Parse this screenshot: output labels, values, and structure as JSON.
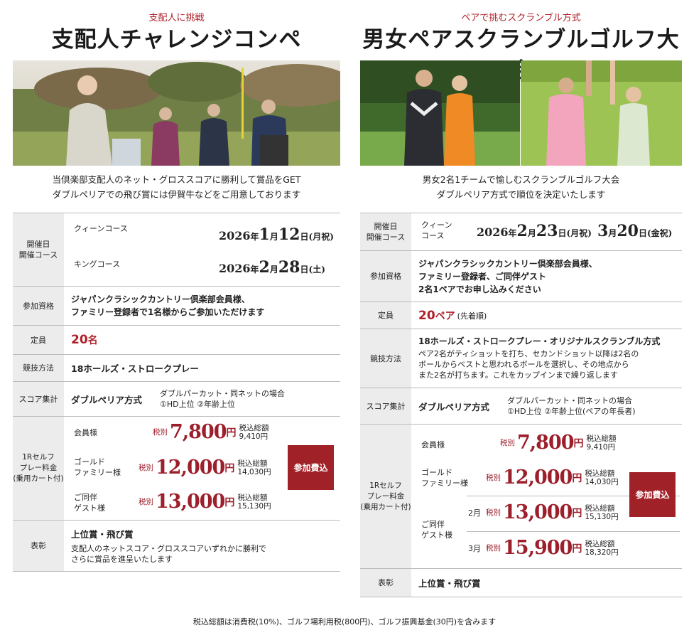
{
  "left": {
    "subtitle": "支配人に挑戦",
    "title": "支配人チャレンジコンペ",
    "desc1": "当倶楽部支配人のネット・グロススコアに勝利して賞品をGET",
    "desc2": "ダブルペリアでの飛び賞には伊賀牛などをご用意しております",
    "date_head": "開催日\n開催コース",
    "course1": "クィーンコース",
    "date1": {
      "year": "2026",
      "nen": "年",
      "month": "1",
      "tsuki": "月",
      "day": "12",
      "hi": "日",
      "dow": "(月祝)"
    },
    "course2": "キングコース",
    "date2": {
      "year": "2026",
      "nen": "年",
      "month": "2",
      "tsuki": "月",
      "day": "28",
      "hi": "日",
      "dow": "(土)"
    },
    "qual_head": "参加資格",
    "qual1": "ジャパンクラシックカントリー倶楽部会員様、",
    "qual2": "ファミリー登録者で1名様からご参加いただけます",
    "cap_head": "定員",
    "cap_num": "20",
    "cap_unit": "名",
    "method_head": "競技方法",
    "method": "18ホールズ・ストロークプレー",
    "score_head": "スコア集計",
    "score": "ダブルペリア方式",
    "score_note1": "ダブルパーカット・同ネットの場合",
    "score_note2": "①HD上位 ②年齢上位",
    "fee_head": "1Rセルフ\nプレー料金\n(乗用カート付)",
    "fees": [
      {
        "label": "会員様",
        "zei": "税別",
        "price": "7,800",
        "yen": "円",
        "tax_label": "税込総額",
        "tax": "9,410円"
      },
      {
        "label": "ゴールド\nファミリー様",
        "zei": "税別",
        "price": "12,000",
        "yen": "円",
        "tax_label": "税込総額",
        "tax": "14,030円"
      },
      {
        "label": "ご同伴\nゲスト様",
        "zei": "税別",
        "price": "13,000",
        "yen": "円",
        "tax_label": "税込総額",
        "tax": "15,130円"
      }
    ],
    "fee_button": "参加費込",
    "award_head": "表彰",
    "award": "上位賞・飛び賞",
    "award_note1": "支配人のネットスコア・グロススコアいずれかに勝利で",
    "award_note2": "さらに賞品を進呈いたします"
  },
  "right": {
    "subtitle": "ペアで挑むスクランブル方式",
    "title": "男女ペアスクランブルゴルフ大会",
    "desc1": "男女2名1チームで愉しむスクランブルゴルフ大会",
    "desc2": "ダブルペリア方式で順位を決定いたします",
    "date_head": "開催日\n開催コース",
    "course": "クィーン\nコース",
    "date1": {
      "year": "2026",
      "nen": "年",
      "month": "2",
      "tsuki": "月",
      "day": "23",
      "hi": "日",
      "dow": "(月祝)"
    },
    "date2": {
      "month": "3",
      "tsuki": "月",
      "day": "20",
      "hi": "日",
      "dow": "(金祝)"
    },
    "qual_head": "参加資格",
    "qual1": "ジャパンクラシックカントリー倶楽部会員様、",
    "qual2": "ファミリー登録者、ご同伴ゲスト",
    "qual3": "2名1ペアでお申し込みください",
    "cap_head": "定員",
    "cap_num": "20",
    "cap_unit": "ペア",
    "cap_note": "(先着順)",
    "method_head": "競技方法",
    "method": "18ホールズ・ストロークプレー・オリジナルスクランブル方式",
    "method_note1": "ペア2名がティショットを打ち、セカンドショット以降は2名の",
    "method_note2": "ボールからベストと思われるボールを選択し、その地点から",
    "method_note3": "また2名が打ちます。これをカップインまで繰り返します",
    "score_head": "スコア集計",
    "score": "ダブルペリア方式",
    "score_note1": "ダブルパーカット・同ネットの場合",
    "score_note2": "①HD上位 ②年齢上位(ペアの年長者)",
    "fee_head": "1Rセルフ\nプレー料金\n(乗用カート付)",
    "fees": [
      {
        "label": "会員様",
        "sub": "",
        "zei": "税別",
        "price": "7,800",
        "yen": "円",
        "tax_label": "税込総額",
        "tax": "9,410円"
      },
      {
        "label": "ゴールド\nファミリー様",
        "sub": "",
        "zei": "税別",
        "price": "12,000",
        "yen": "円",
        "tax_label": "税込総額",
        "tax": "14,030円"
      },
      {
        "label": "ご同伴\nゲスト様",
        "sub": "2月",
        "zei": "税別",
        "price": "13,000",
        "yen": "円",
        "tax_label": "税込総額",
        "tax": "15,130円"
      },
      {
        "label": "",
        "sub": "3月",
        "zei": "税別",
        "price": "15,900",
        "yen": "円",
        "tax_label": "税込総額",
        "tax": "18,320円"
      }
    ],
    "fee_button": "参加費込",
    "award_head": "表彰",
    "award": "上位賞・飛び賞"
  },
  "footer_note": "税込総額は消費税(10%)、ゴルフ場利用税(800円)、ゴルフ振興基金(30円)を含みます"
}
